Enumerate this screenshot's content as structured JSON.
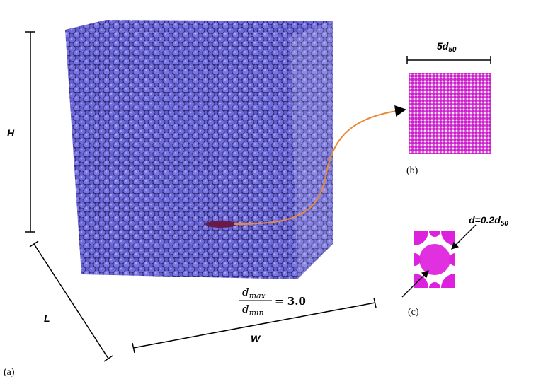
{
  "labels": {
    "height": "H",
    "length": "L",
    "width": "W"
  },
  "panel_a": {
    "label": "(a)",
    "ratio": {
      "num_base": "d",
      "num_sub": "max",
      "den_base": "d",
      "den_sub": "min",
      "value": "= 3.0"
    }
  },
  "panel_b": {
    "label": "(b)",
    "size_base": "5d",
    "size_sub": "50"
  },
  "panel_c": {
    "label": "(c)",
    "diameter_base": "d=0.2d",
    "diameter_sub": "50"
  }
}
